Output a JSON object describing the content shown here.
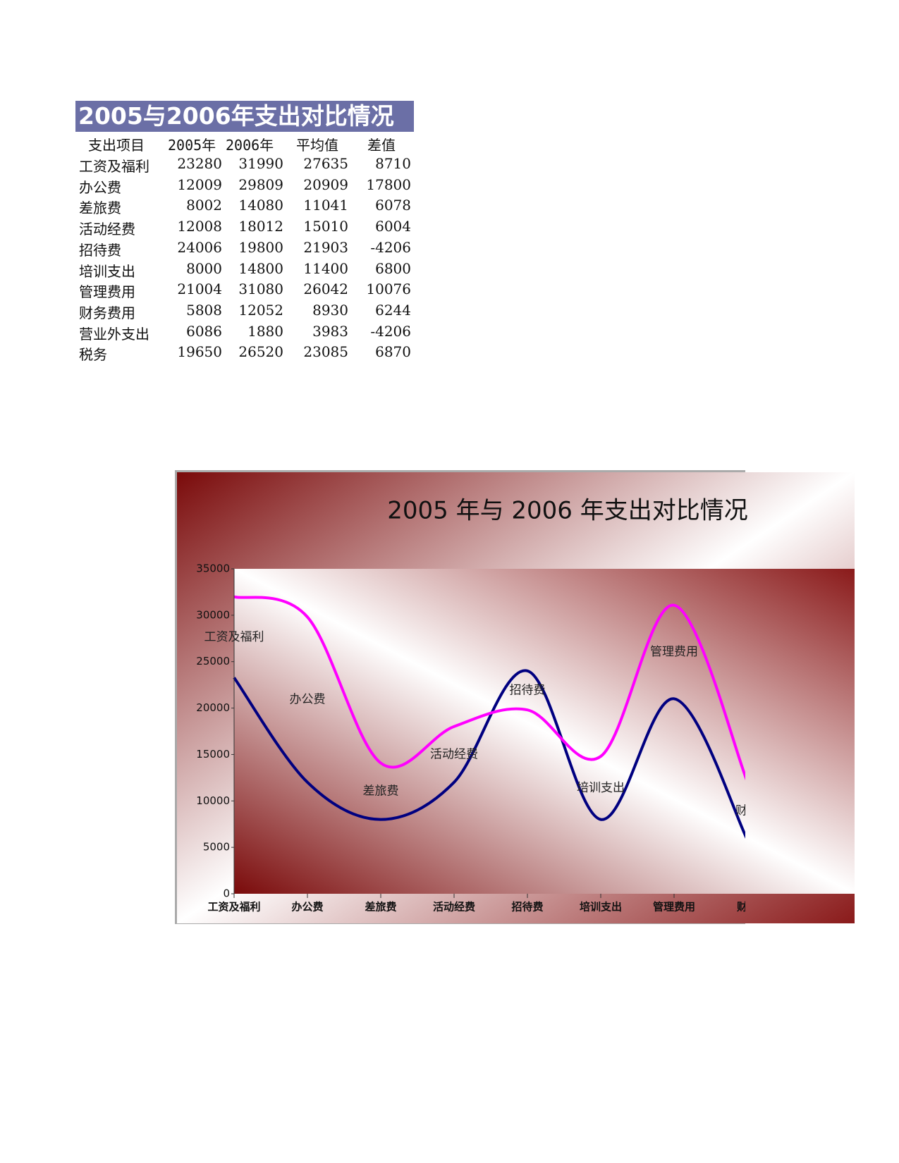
{
  "table": {
    "title": "2005与2006年支出对比情况",
    "header": [
      "支出项目",
      "2005年",
      "2006年",
      "平均值",
      "差值"
    ],
    "rows": [
      [
        "工资及福利",
        23280,
        31990,
        27635,
        8710
      ],
      [
        "办公费",
        12009,
        29809,
        20909,
        17800
      ],
      [
        "差旅费",
        8002,
        14080,
        11041,
        6078
      ],
      [
        "活动经费",
        12008,
        18012,
        15010,
        6004
      ],
      [
        "招待费",
        24006,
        19800,
        21903,
        -4206
      ],
      [
        "培训支出",
        8000,
        14800,
        11400,
        6800
      ],
      [
        "管理费用",
        21004,
        31080,
        26042,
        10076
      ],
      [
        "财务费用",
        5808,
        12052,
        8930,
        6244
      ],
      [
        "营业外支出",
        6086,
        1880,
        3983,
        -4206
      ],
      [
        "税务",
        19650,
        26520,
        23085,
        6870
      ]
    ]
  },
  "chart_data": {
    "type": "line",
    "title": "2005 年与 2006 年支出对比情况",
    "categories": [
      "工资及福利",
      "办公费",
      "差旅费",
      "活动经费",
      "招待费",
      "培训支出",
      "管理费用",
      "财务"
    ],
    "series": [
      {
        "color": "#000080",
        "values": [
          23280,
          12009,
          8002,
          12008,
          24006,
          8000,
          21004,
          5808
        ]
      },
      {
        "color": "#ff00ff",
        "values": [
          31990,
          29809,
          14080,
          18012,
          19800,
          14800,
          31080,
          12052
        ]
      },
      {
        "line": false,
        "values": [
          27635,
          20909,
          11041,
          15010,
          21903,
          11400,
          26042,
          8930
        ]
      }
    ],
    "ylim": [
      0,
      35000
    ],
    "yticks": [
      0,
      5000,
      10000,
      15000,
      20000,
      25000,
      30000,
      35000
    ]
  }
}
